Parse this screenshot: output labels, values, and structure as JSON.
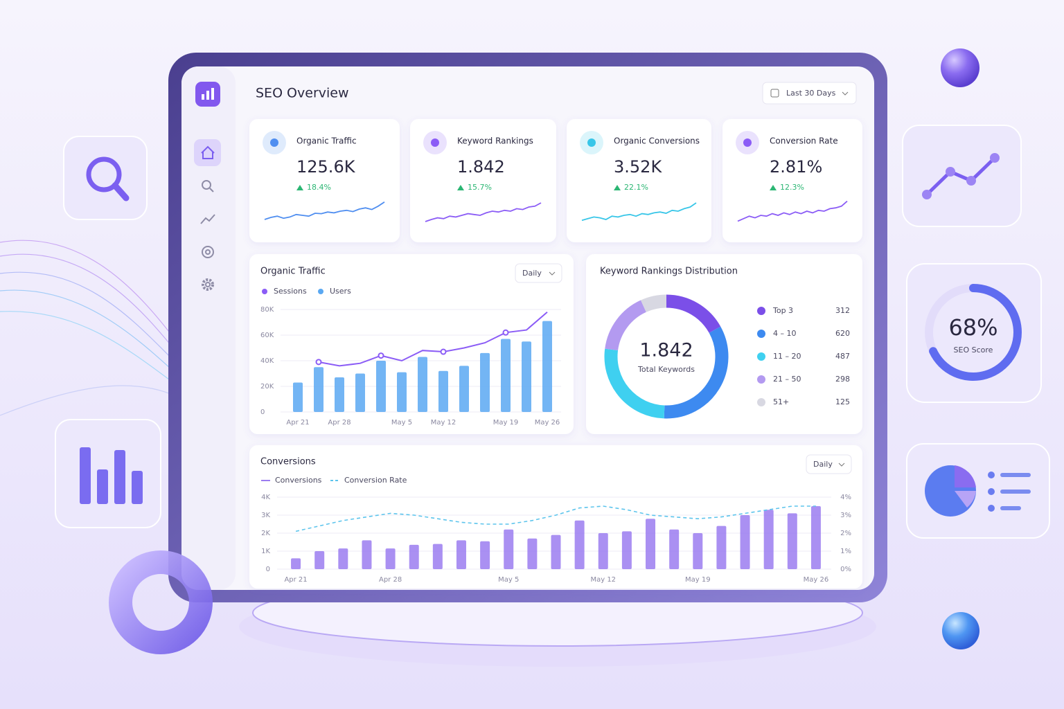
{
  "header": {
    "title": "SEO Overview",
    "date_range": "Last 30 Days"
  },
  "kpis": [
    {
      "label": "Organic Traffic",
      "value": "125.6K",
      "change": "18.4%",
      "color": "#4f8ef0",
      "trend": [
        30,
        35,
        38,
        33,
        36,
        42,
        40,
        38,
        45,
        44,
        48,
        46,
        50,
        52,
        49,
        55,
        58,
        54,
        62,
        72
      ]
    },
    {
      "label": "Keyword Rankings",
      "value": "1.842",
      "change": "15.7%",
      "color": "#8b5cf6",
      "trend": [
        25,
        30,
        34,
        32,
        38,
        36,
        40,
        44,
        42,
        40,
        46,
        50,
        48,
        52,
        50,
        56,
        54,
        60,
        62,
        70
      ]
    },
    {
      "label": "Organic Conversions",
      "value": "3.52K",
      "change": "22.1%",
      "color": "#38c6e8",
      "trend": [
        28,
        32,
        36,
        34,
        30,
        38,
        36,
        40,
        42,
        38,
        44,
        42,
        46,
        48,
        45,
        52,
        50,
        56,
        60,
        70
      ]
    },
    {
      "label": "Conversion Rate",
      "value": "2.81%",
      "change": "12.3%",
      "color": "#8b5cf6",
      "trend": [
        26,
        32,
        38,
        34,
        40,
        38,
        44,
        40,
        46,
        42,
        48,
        44,
        50,
        46,
        52,
        50,
        56,
        58,
        62,
        74
      ]
    }
  ],
  "organic_traffic": {
    "type": "bar",
    "title": "Organic Traffic",
    "period": "Daily",
    "categories": [
      "Apr 21",
      null,
      "Apr 28",
      null,
      null,
      "May 5",
      null,
      "May 12",
      null,
      null,
      "May 19",
      null,
      "May 26"
    ],
    "ylim": [
      0,
      80000
    ],
    "yticks": [
      0,
      {
        "value": 20000,
        "label": "20K"
      },
      {
        "value": 40000,
        "label": "40K"
      },
      {
        "value": 60000,
        "label": "60K"
      },
      {
        "value": 80000,
        "label": "80K"
      }
    ],
    "series": [
      {
        "name": "Sessions",
        "color": "#8b5cf6",
        "type": "line",
        "values": [
          null,
          39000,
          36000,
          38000,
          44000,
          40000,
          48000,
          47000,
          50000,
          54000,
          62000,
          64000,
          78000
        ]
      },
      {
        "name": "Users",
        "color": "#5aa8f2",
        "type": "bar",
        "values": [
          23000,
          35000,
          27000,
          30000,
          40000,
          31000,
          43000,
          32000,
          36000,
          46000,
          57000,
          55000,
          71000
        ]
      }
    ]
  },
  "keyword_distribution": {
    "type": "pie",
    "title": "Keyword Rankings Distribution",
    "total": "1.842",
    "total_label": "Total Keywords",
    "categories": [
      "Top 3",
      "4 – 10",
      "11 – 20",
      "21 – 50",
      "51+"
    ],
    "values": [
      312,
      620,
      487,
      298,
      125
    ],
    "colors": [
      "#7b4fe8",
      "#3d8af0",
      "#3fd0f0",
      "#b39af0",
      "#d8d8e2"
    ]
  },
  "conversions": {
    "type": "bar",
    "title": "Conversions",
    "period": "Daily",
    "categories": [
      "Apr 21",
      null,
      null,
      null,
      "Apr 28",
      null,
      null,
      null,
      null,
      "May 5",
      null,
      null,
      null,
      "May 12",
      null,
      null,
      null,
      "May 19",
      null,
      null,
      null,
      null,
      "May 26"
    ],
    "ylim": [
      0,
      4000
    ],
    "yticks": [
      0,
      {
        "value": 1000,
        "label": "1K"
      },
      {
        "value": 2000,
        "label": "2K"
      },
      {
        "value": 3000,
        "label": "3K"
      },
      {
        "value": 4000,
        "label": "4K"
      }
    ],
    "y2lim": [
      0,
      4
    ],
    "y2ticks": [
      {
        "value": 0,
        "label": "0%"
      },
      {
        "value": 1,
        "label": "1%"
      },
      {
        "value": 2,
        "label": "2%"
      },
      {
        "value": 3,
        "label": "3%"
      },
      {
        "value": 4,
        "label": "4%"
      }
    ],
    "series": [
      {
        "name": "Conversions",
        "color": "#9b7cf0",
        "type": "bar",
        "values": [
          600,
          1000,
          1150,
          1600,
          1150,
          1350,
          1400,
          1600,
          1550,
          2200,
          1700,
          1900,
          2700,
          2000,
          2100,
          2800,
          2200,
          2000,
          2400,
          3000,
          3300,
          3100,
          3500
        ]
      },
      {
        "name": "Conversion Rate",
        "color": "#5cc4ec",
        "type": "line",
        "axis": "y2",
        "values": [
          2.1,
          2.4,
          2.7,
          2.9,
          3.1,
          3.0,
          2.8,
          2.6,
          2.5,
          2.5,
          2.7,
          3.0,
          3.4,
          3.5,
          3.3,
          3.0,
          2.9,
          2.8,
          2.9,
          3.1,
          3.3,
          3.5,
          3.5
        ]
      }
    ]
  },
  "seo_score": {
    "value": 68,
    "value_label": "68%",
    "label": "SEO Score"
  }
}
